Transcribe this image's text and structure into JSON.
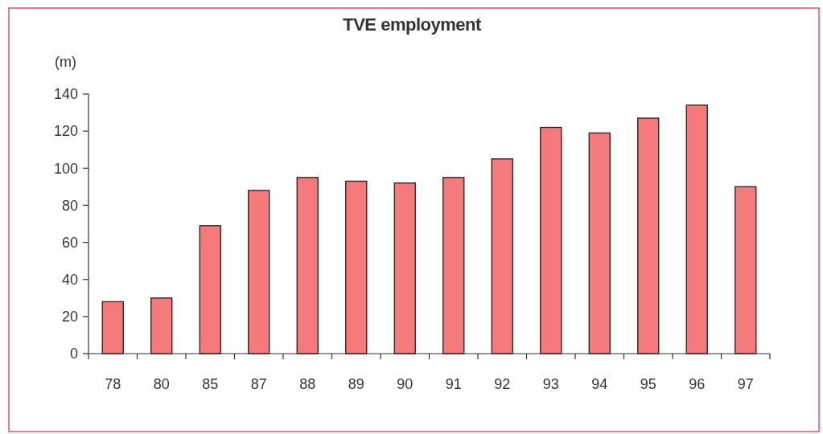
{
  "chart_data": {
    "type": "bar",
    "title": "TVE employment",
    "ylabel": "(m)",
    "categories": [
      "78",
      "80",
      "85",
      "87",
      "88",
      "89",
      "90",
      "91",
      "92",
      "93",
      "94",
      "95",
      "96",
      "97"
    ],
    "values": [
      28,
      30,
      69,
      88,
      95,
      93,
      92,
      95,
      105,
      122,
      119,
      127,
      134,
      90
    ],
    "color": "#f47a7c",
    "ylim": [
      0,
      140
    ],
    "yticks": [
      0,
      20,
      40,
      60,
      80,
      100,
      120,
      140
    ],
    "grid": false,
    "legend": false
  }
}
